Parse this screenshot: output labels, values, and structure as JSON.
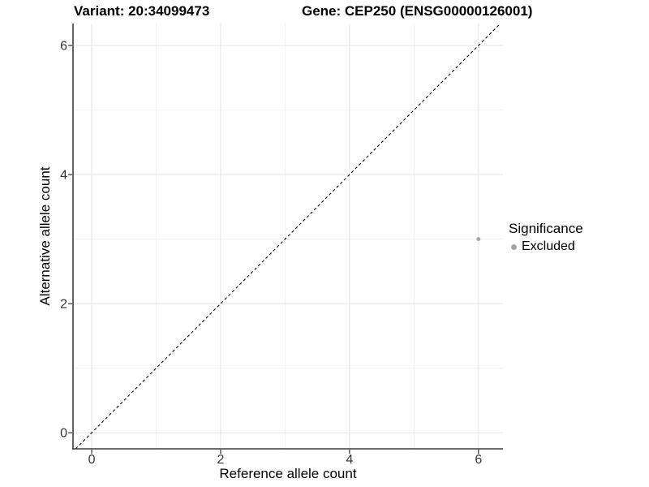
{
  "titles": {
    "variant": "Variant: 20:34099473",
    "gene": "Gene: CEP250 (ENSG00000126001)"
  },
  "axes": {
    "x": {
      "label": "Reference allele count",
      "tick_labels": [
        "0",
        "2",
        "4",
        "6"
      ]
    },
    "y": {
      "label": "Alternative allele count",
      "tick_labels": [
        "0",
        "2",
        "4",
        "6"
      ]
    }
  },
  "legend": {
    "title": "Significance",
    "items": [
      {
        "label": "Excluded",
        "color": "#a4a4a4"
      }
    ]
  },
  "colors": {
    "background": "#ffffff",
    "grid_major": "#e5e5e5",
    "grid_minor": "#f0f0f0",
    "axis_line": "#3c3c3c",
    "tick_mark": "#333333",
    "tick_label": "#333333",
    "identity_line": "#000000",
    "point": "#a4a4a4"
  },
  "chart_data": {
    "type": "scatter",
    "title": "Variant: 20:34099473  |  Gene: CEP250 (ENSG00000126001)",
    "xlabel": "Reference allele count",
    "ylabel": "Alternative allele count",
    "xlim": [
      -0.29,
      6.38
    ],
    "ylim": [
      -0.25,
      6.34
    ],
    "x_ticks": [
      0,
      2,
      4,
      6
    ],
    "y_ticks": [
      0,
      2,
      4,
      6
    ],
    "x_minor_ticks": [
      1,
      3,
      5
    ],
    "y_minor_ticks": [
      1,
      3,
      5
    ],
    "grid": true,
    "legend_position": "right",
    "series": [
      {
        "name": "Excluded",
        "color": "#a4a4a4",
        "points": [
          {
            "x": 6,
            "y": 3
          }
        ]
      }
    ],
    "reference_line": {
      "kind": "abline",
      "slope": 1,
      "intercept": 0,
      "style": "dashed",
      "color": "#000000"
    }
  }
}
